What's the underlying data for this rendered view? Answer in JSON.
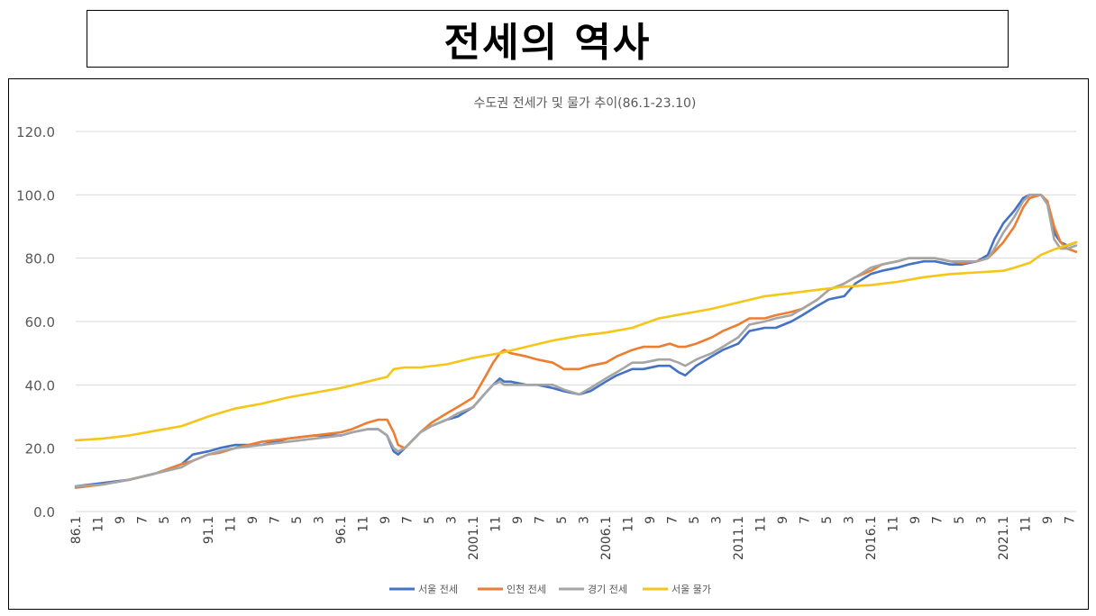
{
  "heading": "전세의 역사",
  "chart_data": {
    "type": "line",
    "title": "수도권 전세가 및 물가 추이(86.1-23.10)",
    "xlabel": "",
    "ylabel": "",
    "ylim": [
      0,
      120
    ],
    "y_ticks": [
      "0.0",
      "20.0",
      "40.0",
      "60.0",
      "80.0",
      "100.0",
      "120.0"
    ],
    "x_range": [
      "1986.01",
      "2023.10"
    ],
    "x_tick_labels": [
      "86.1",
      "11",
      "9",
      "7",
      "5",
      "3",
      "91.1",
      "11",
      "9",
      "7",
      "5",
      "3",
      "96.1",
      "11",
      "9",
      "7",
      "5",
      "3",
      "2001.1",
      "11",
      "9",
      "7",
      "5",
      "3",
      "2006.1",
      "11",
      "9",
      "7",
      "5",
      "3",
      "2011.1",
      "11",
      "9",
      "7",
      "5",
      "3",
      "2016.1",
      "11",
      "9",
      "7",
      "5",
      "3",
      "2021.1",
      "11",
      "9",
      "7"
    ],
    "x_tick_step_months": 10,
    "grid": "horizontal",
    "legend_position": "bottom",
    "series": [
      {
        "name": "서울 전세",
        "color": "#4472c4",
        "points": [
          [
            "1986.01",
            8
          ],
          [
            "1987.01",
            9
          ],
          [
            "1988.01",
            10
          ],
          [
            "1989.01",
            12
          ],
          [
            "1990.01",
            15
          ],
          [
            "1990.06",
            18
          ],
          [
            "1991.01",
            19
          ],
          [
            "1991.06",
            20
          ],
          [
            "1992.01",
            21
          ],
          [
            "1993.01",
            21
          ],
          [
            "1994.01",
            23
          ],
          [
            "1995.01",
            24
          ],
          [
            "1996.01",
            24
          ],
          [
            "1996.06",
            25
          ],
          [
            "1997.01",
            26
          ],
          [
            "1997.06",
            26
          ],
          [
            "1997.10",
            24
          ],
          [
            "1998.01",
            19
          ],
          [
            "1998.03",
            18
          ],
          [
            "1998.06",
            20
          ],
          [
            "1999.01",
            25
          ],
          [
            "1999.06",
            27
          ],
          [
            "2000.01",
            29
          ],
          [
            "2000.06",
            30
          ],
          [
            "2001.01",
            33
          ],
          [
            "2001.06",
            37
          ],
          [
            "2001.10",
            40
          ],
          [
            "2002.01",
            42
          ],
          [
            "2002.03",
            41
          ],
          [
            "2002.06",
            41
          ],
          [
            "2003.01",
            40
          ],
          [
            "2003.06",
            40
          ],
          [
            "2004.01",
            39
          ],
          [
            "2004.06",
            38
          ],
          [
            "2005.01",
            37
          ],
          [
            "2005.06",
            38
          ],
          [
            "2006.01",
            41
          ],
          [
            "2006.06",
            43
          ],
          [
            "2007.01",
            45
          ],
          [
            "2007.06",
            45
          ],
          [
            "2008.01",
            46
          ],
          [
            "2008.06",
            46
          ],
          [
            "2008.10",
            44
          ],
          [
            "2009.01",
            43
          ],
          [
            "2009.06",
            46
          ],
          [
            "2010.01",
            49
          ],
          [
            "2010.06",
            51
          ],
          [
            "2011.01",
            53
          ],
          [
            "2011.06",
            57
          ],
          [
            "2012.01",
            58
          ],
          [
            "2012.06",
            58
          ],
          [
            "2013.01",
            60
          ],
          [
            "2013.06",
            62
          ],
          [
            "2014.01",
            65
          ],
          [
            "2014.06",
            67
          ],
          [
            "2015.01",
            68
          ],
          [
            "2015.06",
            72
          ],
          [
            "2016.01",
            75
          ],
          [
            "2016.06",
            76
          ],
          [
            "2017.01",
            77
          ],
          [
            "2017.06",
            78
          ],
          [
            "2018.01",
            79
          ],
          [
            "2018.06",
            79
          ],
          [
            "2019.01",
            78
          ],
          [
            "2019.06",
            78
          ],
          [
            "2020.01",
            79
          ],
          [
            "2020.06",
            81
          ],
          [
            "2020.09",
            86
          ],
          [
            "2021.01",
            91
          ],
          [
            "2021.06",
            95
          ],
          [
            "2021.10",
            99
          ],
          [
            "2022.01",
            100
          ],
          [
            "2022.06",
            100
          ],
          [
            "2022.09",
            98
          ],
          [
            "2022.12",
            88
          ],
          [
            "2023.03",
            85
          ],
          [
            "2023.06",
            84
          ],
          [
            "2023.10",
            85
          ]
        ]
      },
      {
        "name": "인천 전세",
        "color": "#ed7d31",
        "points": [
          [
            "1986.01",
            7.5
          ],
          [
            "1987.01",
            8.5
          ],
          [
            "1988.01",
            10
          ],
          [
            "1989.01",
            12
          ],
          [
            "1990.01",
            15
          ],
          [
            "1990.06",
            16
          ],
          [
            "1991.01",
            18
          ],
          [
            "1991.06",
            18.5
          ],
          [
            "1992.01",
            20
          ],
          [
            "1993.01",
            22
          ],
          [
            "1994.01",
            23
          ],
          [
            "1995.01",
            24
          ],
          [
            "1996.01",
            25
          ],
          [
            "1996.06",
            26
          ],
          [
            "1997.01",
            28
          ],
          [
            "1997.06",
            29
          ],
          [
            "1997.10",
            29
          ],
          [
            "1998.01",
            25
          ],
          [
            "1998.03",
            21
          ],
          [
            "1998.06",
            20
          ],
          [
            "1999.01",
            25
          ],
          [
            "1999.06",
            28
          ],
          [
            "2000.01",
            31
          ],
          [
            "2000.06",
            33
          ],
          [
            "2001.01",
            36
          ],
          [
            "2001.06",
            42
          ],
          [
            "2001.10",
            47
          ],
          [
            "2002.01",
            50
          ],
          [
            "2002.03",
            51
          ],
          [
            "2002.06",
            50
          ],
          [
            "2003.01",
            49
          ],
          [
            "2003.06",
            48
          ],
          [
            "2004.01",
            47
          ],
          [
            "2004.06",
            45
          ],
          [
            "2005.01",
            45
          ],
          [
            "2005.06",
            46
          ],
          [
            "2006.01",
            47
          ],
          [
            "2006.06",
            49
          ],
          [
            "2007.01",
            51
          ],
          [
            "2007.06",
            52
          ],
          [
            "2008.01",
            52
          ],
          [
            "2008.06",
            53
          ],
          [
            "2008.10",
            52
          ],
          [
            "2009.01",
            52
          ],
          [
            "2009.06",
            53
          ],
          [
            "2010.01",
            55
          ],
          [
            "2010.06",
            57
          ],
          [
            "2011.01",
            59
          ],
          [
            "2011.06",
            61
          ],
          [
            "2012.01",
            61
          ],
          [
            "2012.06",
            62
          ],
          [
            "2013.01",
            63
          ],
          [
            "2013.06",
            64
          ],
          [
            "2014.01",
            67
          ],
          [
            "2014.06",
            70
          ],
          [
            "2015.01",
            72
          ],
          [
            "2015.06",
            74
          ],
          [
            "2016.01",
            76
          ],
          [
            "2016.06",
            78
          ],
          [
            "2017.01",
            79
          ],
          [
            "2017.06",
            80
          ],
          [
            "2018.01",
            80
          ],
          [
            "2018.06",
            80
          ],
          [
            "2019.01",
            79
          ],
          [
            "2019.06",
            78.5
          ],
          [
            "2020.01",
            79
          ],
          [
            "2020.06",
            80
          ],
          [
            "2020.09",
            82
          ],
          [
            "2021.01",
            85
          ],
          [
            "2021.06",
            90
          ],
          [
            "2021.10",
            96
          ],
          [
            "2022.01",
            99
          ],
          [
            "2022.06",
            100
          ],
          [
            "2022.09",
            98
          ],
          [
            "2022.12",
            90
          ],
          [
            "2023.03",
            85
          ],
          [
            "2023.06",
            83
          ],
          [
            "2023.10",
            82
          ]
        ]
      },
      {
        "name": "경기 전세",
        "color": "#a5a5a5",
        "points": [
          [
            "1986.01",
            8
          ],
          [
            "1987.01",
            8.5
          ],
          [
            "1988.01",
            10
          ],
          [
            "1989.01",
            12
          ],
          [
            "1990.01",
            14
          ],
          [
            "1990.06",
            16
          ],
          [
            "1991.01",
            18
          ],
          [
            "1991.06",
            19
          ],
          [
            "1992.01",
            20
          ],
          [
            "1993.01",
            21
          ],
          [
            "1994.01",
            22
          ],
          [
            "1995.01",
            23
          ],
          [
            "1996.01",
            24
          ],
          [
            "1996.06",
            25
          ],
          [
            "1997.01",
            26
          ],
          [
            "1997.06",
            26
          ],
          [
            "1997.10",
            24
          ],
          [
            "1998.01",
            20
          ],
          [
            "1998.03",
            19
          ],
          [
            "1998.06",
            20
          ],
          [
            "1999.01",
            25
          ],
          [
            "1999.06",
            27
          ],
          [
            "2000.01",
            29
          ],
          [
            "2000.06",
            31
          ],
          [
            "2001.01",
            33
          ],
          [
            "2001.06",
            37
          ],
          [
            "2001.10",
            40
          ],
          [
            "2002.01",
            41
          ],
          [
            "2002.03",
            40
          ],
          [
            "2002.06",
            40
          ],
          [
            "2003.01",
            40
          ],
          [
            "2003.06",
            40
          ],
          [
            "2004.01",
            40
          ],
          [
            "2004.06",
            38.5
          ],
          [
            "2005.01",
            37
          ],
          [
            "2005.06",
            39
          ],
          [
            "2006.01",
            42
          ],
          [
            "2006.06",
            44
          ],
          [
            "2007.01",
            47
          ],
          [
            "2007.06",
            47
          ],
          [
            "2008.01",
            48
          ],
          [
            "2008.06",
            48
          ],
          [
            "2008.10",
            47
          ],
          [
            "2009.01",
            46
          ],
          [
            "2009.06",
            48
          ],
          [
            "2010.01",
            50
          ],
          [
            "2010.06",
            52
          ],
          [
            "2011.01",
            55
          ],
          [
            "2011.06",
            59
          ],
          [
            "2012.01",
            60
          ],
          [
            "2012.06",
            61
          ],
          [
            "2013.01",
            62
          ],
          [
            "2013.06",
            64
          ],
          [
            "2014.01",
            67
          ],
          [
            "2014.06",
            70
          ],
          [
            "2015.01",
            72
          ],
          [
            "2015.06",
            74
          ],
          [
            "2016.01",
            77
          ],
          [
            "2016.06",
            78
          ],
          [
            "2017.01",
            79
          ],
          [
            "2017.06",
            80
          ],
          [
            "2018.01",
            80
          ],
          [
            "2018.06",
            80
          ],
          [
            "2019.01",
            79
          ],
          [
            "2019.06",
            79
          ],
          [
            "2020.01",
            79
          ],
          [
            "2020.06",
            80
          ],
          [
            "2020.09",
            83
          ],
          [
            "2021.01",
            88
          ],
          [
            "2021.06",
            93
          ],
          [
            "2021.10",
            98
          ],
          [
            "2022.01",
            100
          ],
          [
            "2022.06",
            100
          ],
          [
            "2022.09",
            97
          ],
          [
            "2022.12",
            86
          ],
          [
            "2023.03",
            83
          ],
          [
            "2023.06",
            83
          ],
          [
            "2023.10",
            84
          ]
        ]
      },
      {
        "name": "서울 물가",
        "color": "#f5c518",
        "points": [
          [
            "1986.01",
            22.5
          ],
          [
            "1987.01",
            23
          ],
          [
            "1988.01",
            24
          ],
          [
            "1989.01",
            25.5
          ],
          [
            "1990.01",
            27
          ],
          [
            "1991.01",
            30
          ],
          [
            "1992.01",
            32.5
          ],
          [
            "1993.01",
            34
          ],
          [
            "1994.01",
            36
          ],
          [
            "1995.01",
            37.5
          ],
          [
            "1996.01",
            39
          ],
          [
            "1997.01",
            41
          ],
          [
            "1997.10",
            42.5
          ],
          [
            "1998.01",
            45
          ],
          [
            "1998.06",
            45.5
          ],
          [
            "1999.01",
            45.5
          ],
          [
            "2000.01",
            46.5
          ],
          [
            "2001.01",
            48.5
          ],
          [
            "2002.01",
            50
          ],
          [
            "2003.01",
            52
          ],
          [
            "2004.01",
            54
          ],
          [
            "2005.01",
            55.5
          ],
          [
            "2006.01",
            56.5
          ],
          [
            "2007.01",
            58
          ],
          [
            "2008.01",
            61
          ],
          [
            "2009.01",
            62.5
          ],
          [
            "2010.01",
            64
          ],
          [
            "2011.01",
            66
          ],
          [
            "2012.01",
            68
          ],
          [
            "2013.01",
            69
          ],
          [
            "2014.01",
            70
          ],
          [
            "2015.01",
            71
          ],
          [
            "2016.01",
            71.5
          ],
          [
            "2017.01",
            72.5
          ],
          [
            "2018.01",
            74
          ],
          [
            "2019.01",
            75
          ],
          [
            "2020.01",
            75.5
          ],
          [
            "2021.01",
            76
          ],
          [
            "2021.06",
            77
          ],
          [
            "2022.01",
            78.5
          ],
          [
            "2022.06",
            81
          ],
          [
            "2023.01",
            83
          ],
          [
            "2023.10",
            85
          ]
        ]
      }
    ]
  }
}
